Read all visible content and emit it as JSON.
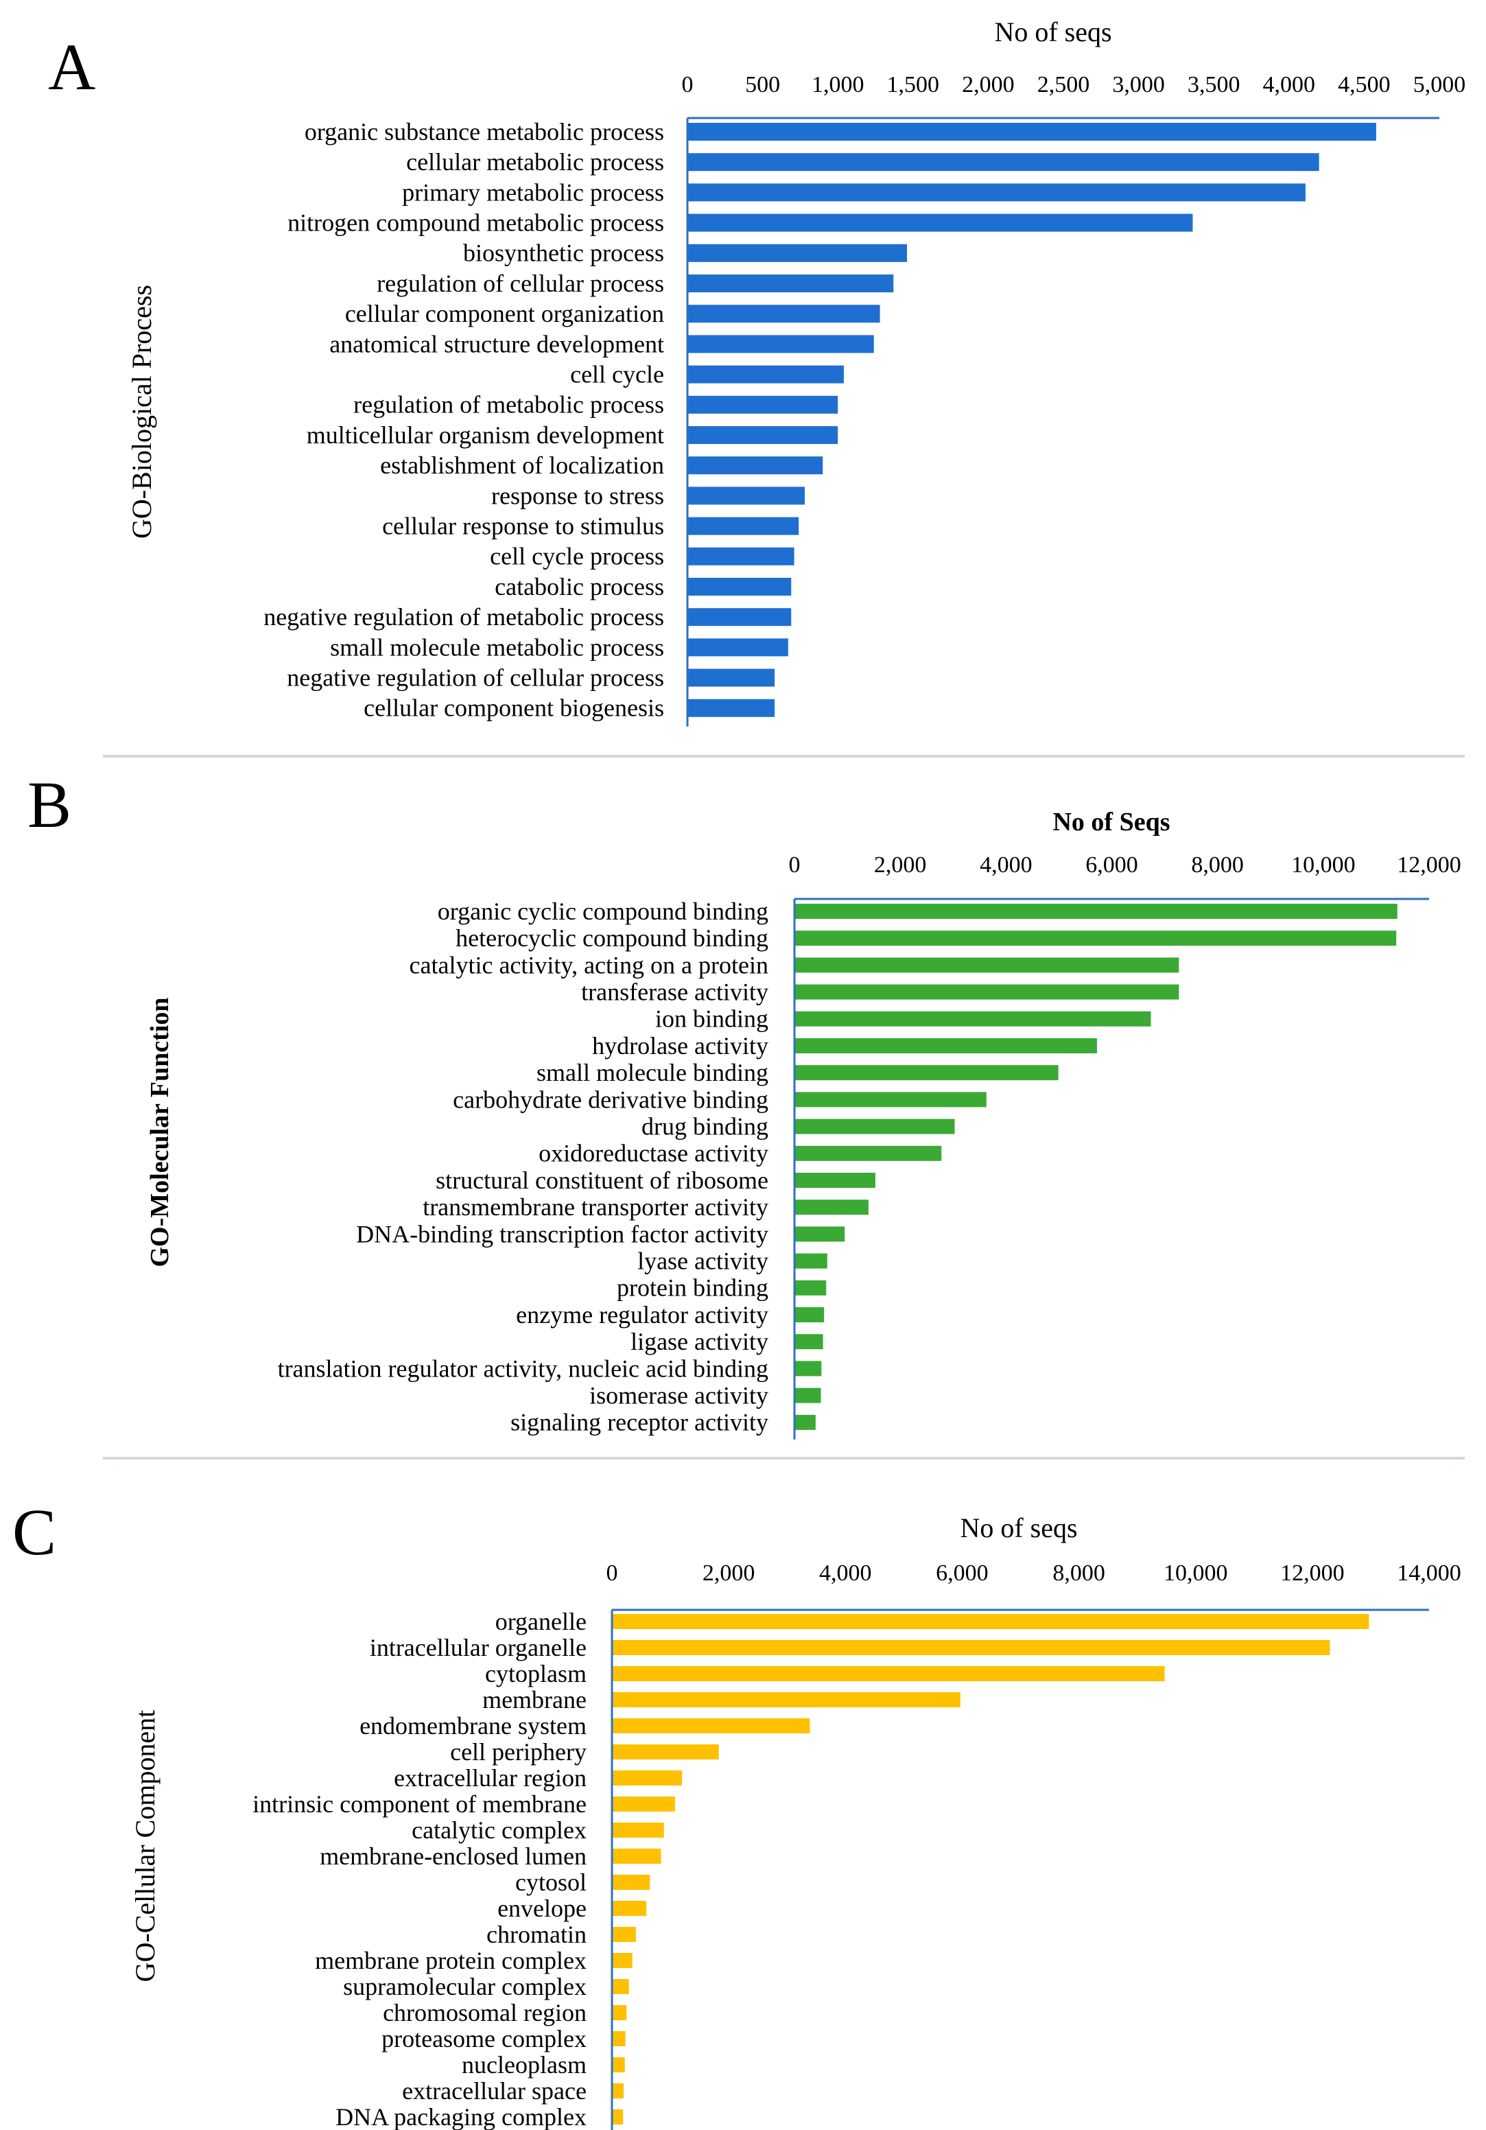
{
  "chart_data": [
    {
      "panel": "A",
      "type": "bar",
      "orientation": "horizontal",
      "title": "No of seqs",
      "xlabel": "No of seqs",
      "ylabel": "GO-Biological Process",
      "xlim": [
        0,
        5000
      ],
      "ticks": [
        0,
        500,
        1000,
        1500,
        2000,
        2500,
        3000,
        3500,
        4000,
        4500,
        5000
      ],
      "tick_labels": [
        "0",
        "500",
        "1,000",
        "1,500",
        "2,000",
        "2,500",
        "3,000",
        "3,500",
        "4,000",
        "4,500",
        "5,000"
      ],
      "color": "#1f6fd0",
      "categories": [
        "organic substance metabolic process",
        "cellular metabolic process",
        "primary metabolic process",
        "nitrogen compound metabolic process",
        "biosynthetic process",
        "regulation of cellular process",
        "cellular component organization",
        "anatomical structure development",
        "cell cycle",
        "regulation of metabolic process",
        "multicellular organism development",
        "establishment of localization",
        "response to stress",
        "cellular response to stimulus",
        "cell cycle process",
        "catabolic process",
        "negative regulation of metabolic process",
        "small molecule metabolic process",
        "negative regulation of cellular process",
        "cellular component biogenesis"
      ],
      "values": [
        4580,
        4200,
        4110,
        3360,
        1460,
        1370,
        1280,
        1240,
        1040,
        1000,
        1000,
        900,
        780,
        740,
        710,
        690,
        690,
        670,
        580,
        580
      ]
    },
    {
      "panel": "B",
      "type": "bar",
      "orientation": "horizontal",
      "title": "No of Seqs",
      "xlabel": "No of Seqs",
      "ylabel": "GO-Molecular Function",
      "xlim": [
        0,
        12000
      ],
      "ticks": [
        0,
        2000,
        4000,
        6000,
        8000,
        10000,
        12000
      ],
      "tick_labels": [
        "0",
        "2,000",
        "4,000",
        "6,000",
        "8,000",
        "10,000",
        "12,000"
      ],
      "color": "#3aaa35",
      "categories": [
        "organic cyclic compound binding",
        "heterocyclic compound binding",
        "catalytic activity, acting on a protein",
        "transferase activity",
        "ion binding",
        "hydrolase activity",
        "small molecule binding",
        "carbohydrate derivative binding",
        "drug binding",
        "oxidoreductase activity",
        "structural constituent of ribosome",
        "transmembrane transporter activity",
        "DNA-binding transcription factor activity",
        "lyase activity",
        "protein binding",
        "enzyme regulator activity",
        "ligase activity",
        "translation regulator activity, nucleic acid binding",
        "isomerase activity",
        "signaling receptor activity"
      ],
      "values": [
        11400,
        11380,
        7270,
        7270,
        6740,
        5720,
        4990,
        3630,
        3030,
        2780,
        1530,
        1400,
        950,
        620,
        600,
        560,
        540,
        510,
        500,
        400
      ]
    },
    {
      "panel": "C",
      "type": "bar",
      "orientation": "horizontal",
      "title": "No of seqs",
      "xlabel": "No of seqs",
      "ylabel": "GO-Cellular Component",
      "xlim": [
        0,
        14000
      ],
      "ticks": [
        0,
        2000,
        4000,
        6000,
        8000,
        10000,
        12000,
        14000
      ],
      "tick_labels": [
        "0",
        "2,000",
        "4,000",
        "6,000",
        "8,000",
        "10,000",
        "12,000",
        "14,000"
      ],
      "color": "#ffc000",
      "categories": [
        "organelle",
        "intracellular organelle",
        "cytoplasm",
        "membrane",
        "endomembrane system",
        "cell periphery",
        "extracellular region",
        "intrinsic component of membrane",
        "catalytic complex",
        "membrane-enclosed lumen",
        "cytosol",
        "envelope",
        "chromatin",
        "membrane protein complex",
        "supramolecular complex",
        "chromosomal region",
        "proteasome complex",
        "nucleoplasm",
        "extracellular space",
        "DNA packaging complex"
      ],
      "values": [
        12970,
        12300,
        9470,
        5970,
        3390,
        1830,
        1200,
        1080,
        890,
        840,
        650,
        590,
        410,
        350,
        290,
        250,
        230,
        220,
        200,
        190
      ]
    }
  ]
}
